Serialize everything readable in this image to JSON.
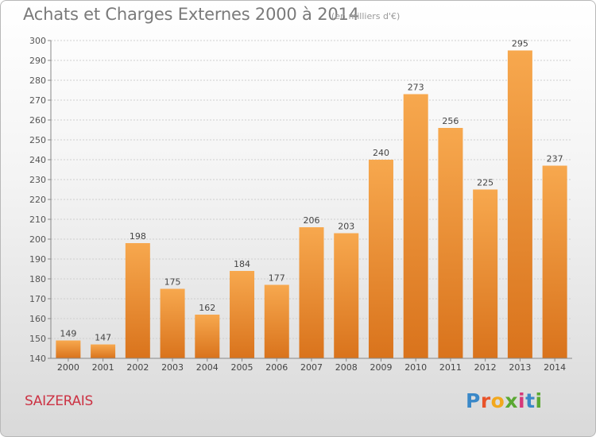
{
  "header": {
    "title": "Achats et Charges Externes 2000 à 2014",
    "subtitle": "(en milliers d'€)"
  },
  "footer": {
    "place": "SAIZERAIS",
    "brand": "Proxiti"
  },
  "colors": {
    "bar_top": "#f7a84e",
    "bar_bottom": "#d9731c",
    "brand_letters": [
      "#3a88c8",
      "#e8532a",
      "#f2a81d",
      "#5aa832",
      "#d6387a",
      "#3a88c8",
      "#5aa832"
    ]
  },
  "chart_data": {
    "type": "bar",
    "categories": [
      "2000",
      "2001",
      "2002",
      "2003",
      "2004",
      "2005",
      "2006",
      "2007",
      "2008",
      "2009",
      "2010",
      "2011",
      "2012",
      "2013",
      "2014"
    ],
    "values": [
      149,
      147,
      198,
      175,
      162,
      184,
      177,
      206,
      203,
      240,
      273,
      256,
      225,
      295,
      237
    ],
    "ylim": [
      140,
      300
    ],
    "yticks": [
      140,
      150,
      160,
      170,
      180,
      190,
      200,
      210,
      220,
      230,
      240,
      250,
      260,
      270,
      280,
      290,
      300
    ],
    "xlabel": "",
    "ylabel": "",
    "grid": true
  }
}
